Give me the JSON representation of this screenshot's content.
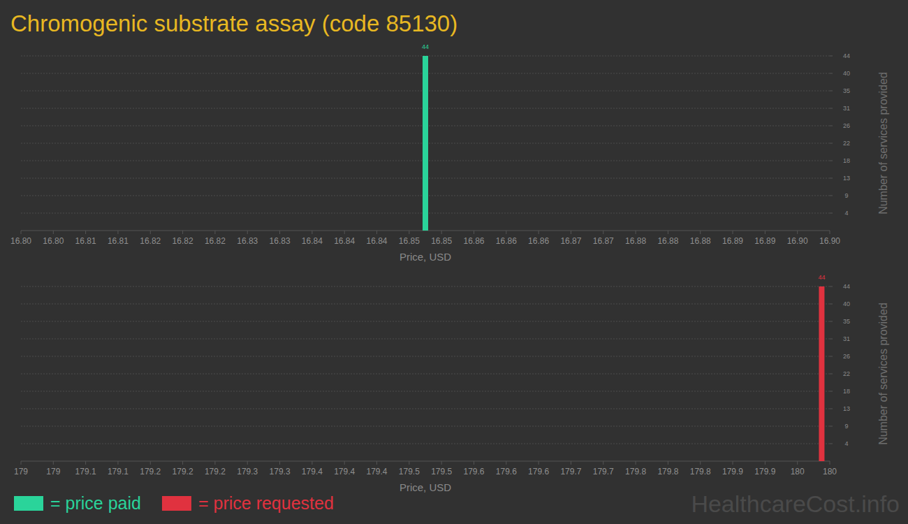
{
  "title": "Chromogenic substrate assay (code 85130)",
  "watermark": "HealthcareCost.info",
  "chart_data": [
    {
      "type": "bar",
      "x": [
        16.85
      ],
      "series": [
        {
          "name": "= price paid",
          "color": "#2ad49a",
          "values": [
            44
          ]
        }
      ],
      "x_label": "Price, USD",
      "y_label": "Number of services provided",
      "xlim": [
        16.8,
        16.9
      ],
      "xticks": [
        {
          "value": 16.8,
          "label": "16.80"
        },
        {
          "value": 16.804,
          "label": "16.80"
        },
        {
          "value": 16.808,
          "label": "16.81"
        },
        {
          "value": 16.812,
          "label": "16.81"
        },
        {
          "value": 16.816,
          "label": "16.82"
        },
        16.82,
        {
          "value": 16.824,
          "label": "16.82"
        },
        {
          "value": 16.828,
          "label": "16.83"
        },
        {
          "value": 16.832,
          "label": "16.83"
        },
        {
          "value": 16.836,
          "label": "16.84"
        },
        16.84,
        {
          "value": 16.844,
          "label": "16.84"
        },
        {
          "value": 16.848,
          "label": "16.85"
        },
        {
          "value": 16.852,
          "label": "16.85"
        },
        {
          "value": 16.856,
          "label": "16.86"
        },
        16.86,
        {
          "value": 16.864,
          "label": "16.86"
        },
        {
          "value": 16.868,
          "label": "16.87"
        },
        {
          "value": 16.872,
          "label": "16.87"
        },
        {
          "value": 16.876,
          "label": "16.88"
        },
        16.88,
        {
          "value": 16.884,
          "label": "16.88"
        },
        {
          "value": 16.888,
          "label": "16.89"
        },
        {
          "value": 16.892,
          "label": "16.89"
        },
        {
          "value": 16.896,
          "label": "16.90"
        },
        {
          "value": 16.9,
          "label": "16.90"
        }
      ],
      "ylim": [
        0,
        44
      ],
      "yticks": [
        {
          "value": 4.4,
          "label": "4"
        },
        {
          "value": 8.8,
          "label": "9"
        },
        {
          "value": 13.2,
          "label": "13"
        },
        {
          "value": 17.6,
          "label": "18"
        },
        22,
        {
          "value": 26.4,
          "label": "26"
        },
        {
          "value": 30.8,
          "label": "31"
        },
        {
          "value": 35.2,
          "label": "35"
        },
        {
          "value": 39.6,
          "label": "40"
        },
        44
      ],
      "grid": true,
      "data_labels": true,
      "legend": "bottom-left"
    },
    {
      "type": "bar",
      "x": [
        179.99
      ],
      "series": [
        {
          "name": "= price requested",
          "color": "#e0323f",
          "values": [
            44
          ]
        }
      ],
      "x_label": "Price, USD",
      "y_label": "Number of services provided",
      "xlim": [
        179,
        180
      ],
      "xticks": [
        179,
        {
          "value": 179.04,
          "label": "179"
        },
        {
          "value": 179.08,
          "label": "179.1"
        },
        {
          "value": 179.12,
          "label": "179.1"
        },
        {
          "value": 179.16,
          "label": "179.2"
        },
        179.2,
        {
          "value": 179.24,
          "label": "179.2"
        },
        {
          "value": 179.28,
          "label": "179.3"
        },
        {
          "value": 179.32,
          "label": "179.3"
        },
        {
          "value": 179.36,
          "label": "179.4"
        },
        179.4,
        {
          "value": 179.44,
          "label": "179.4"
        },
        {
          "value": 179.48,
          "label": "179.5"
        },
        {
          "value": 179.52,
          "label": "179.5"
        },
        {
          "value": 179.56,
          "label": "179.6"
        },
        179.6,
        {
          "value": 179.64,
          "label": "179.6"
        },
        {
          "value": 179.68,
          "label": "179.7"
        },
        {
          "value": 179.72,
          "label": "179.7"
        },
        {
          "value": 179.76,
          "label": "179.8"
        },
        179.8,
        {
          "value": 179.84,
          "label": "179.8"
        },
        {
          "value": 179.88,
          "label": "179.9"
        },
        {
          "value": 179.92,
          "label": "179.9"
        },
        {
          "value": 179.96,
          "label": "180"
        },
        180
      ],
      "ylim": [
        0,
        44
      ],
      "yticks": [
        {
          "value": 4.4,
          "label": "4"
        },
        {
          "value": 8.8,
          "label": "9"
        },
        {
          "value": 13.2,
          "label": "13"
        },
        {
          "value": 17.6,
          "label": "18"
        },
        22,
        {
          "value": 26.4,
          "label": "26"
        },
        {
          "value": 30.8,
          "label": "31"
        },
        {
          "value": 35.2,
          "label": "35"
        },
        {
          "value": 39.6,
          "label": "40"
        },
        44
      ],
      "grid": true,
      "data_labels": true,
      "legend": "bottom-left"
    }
  ]
}
